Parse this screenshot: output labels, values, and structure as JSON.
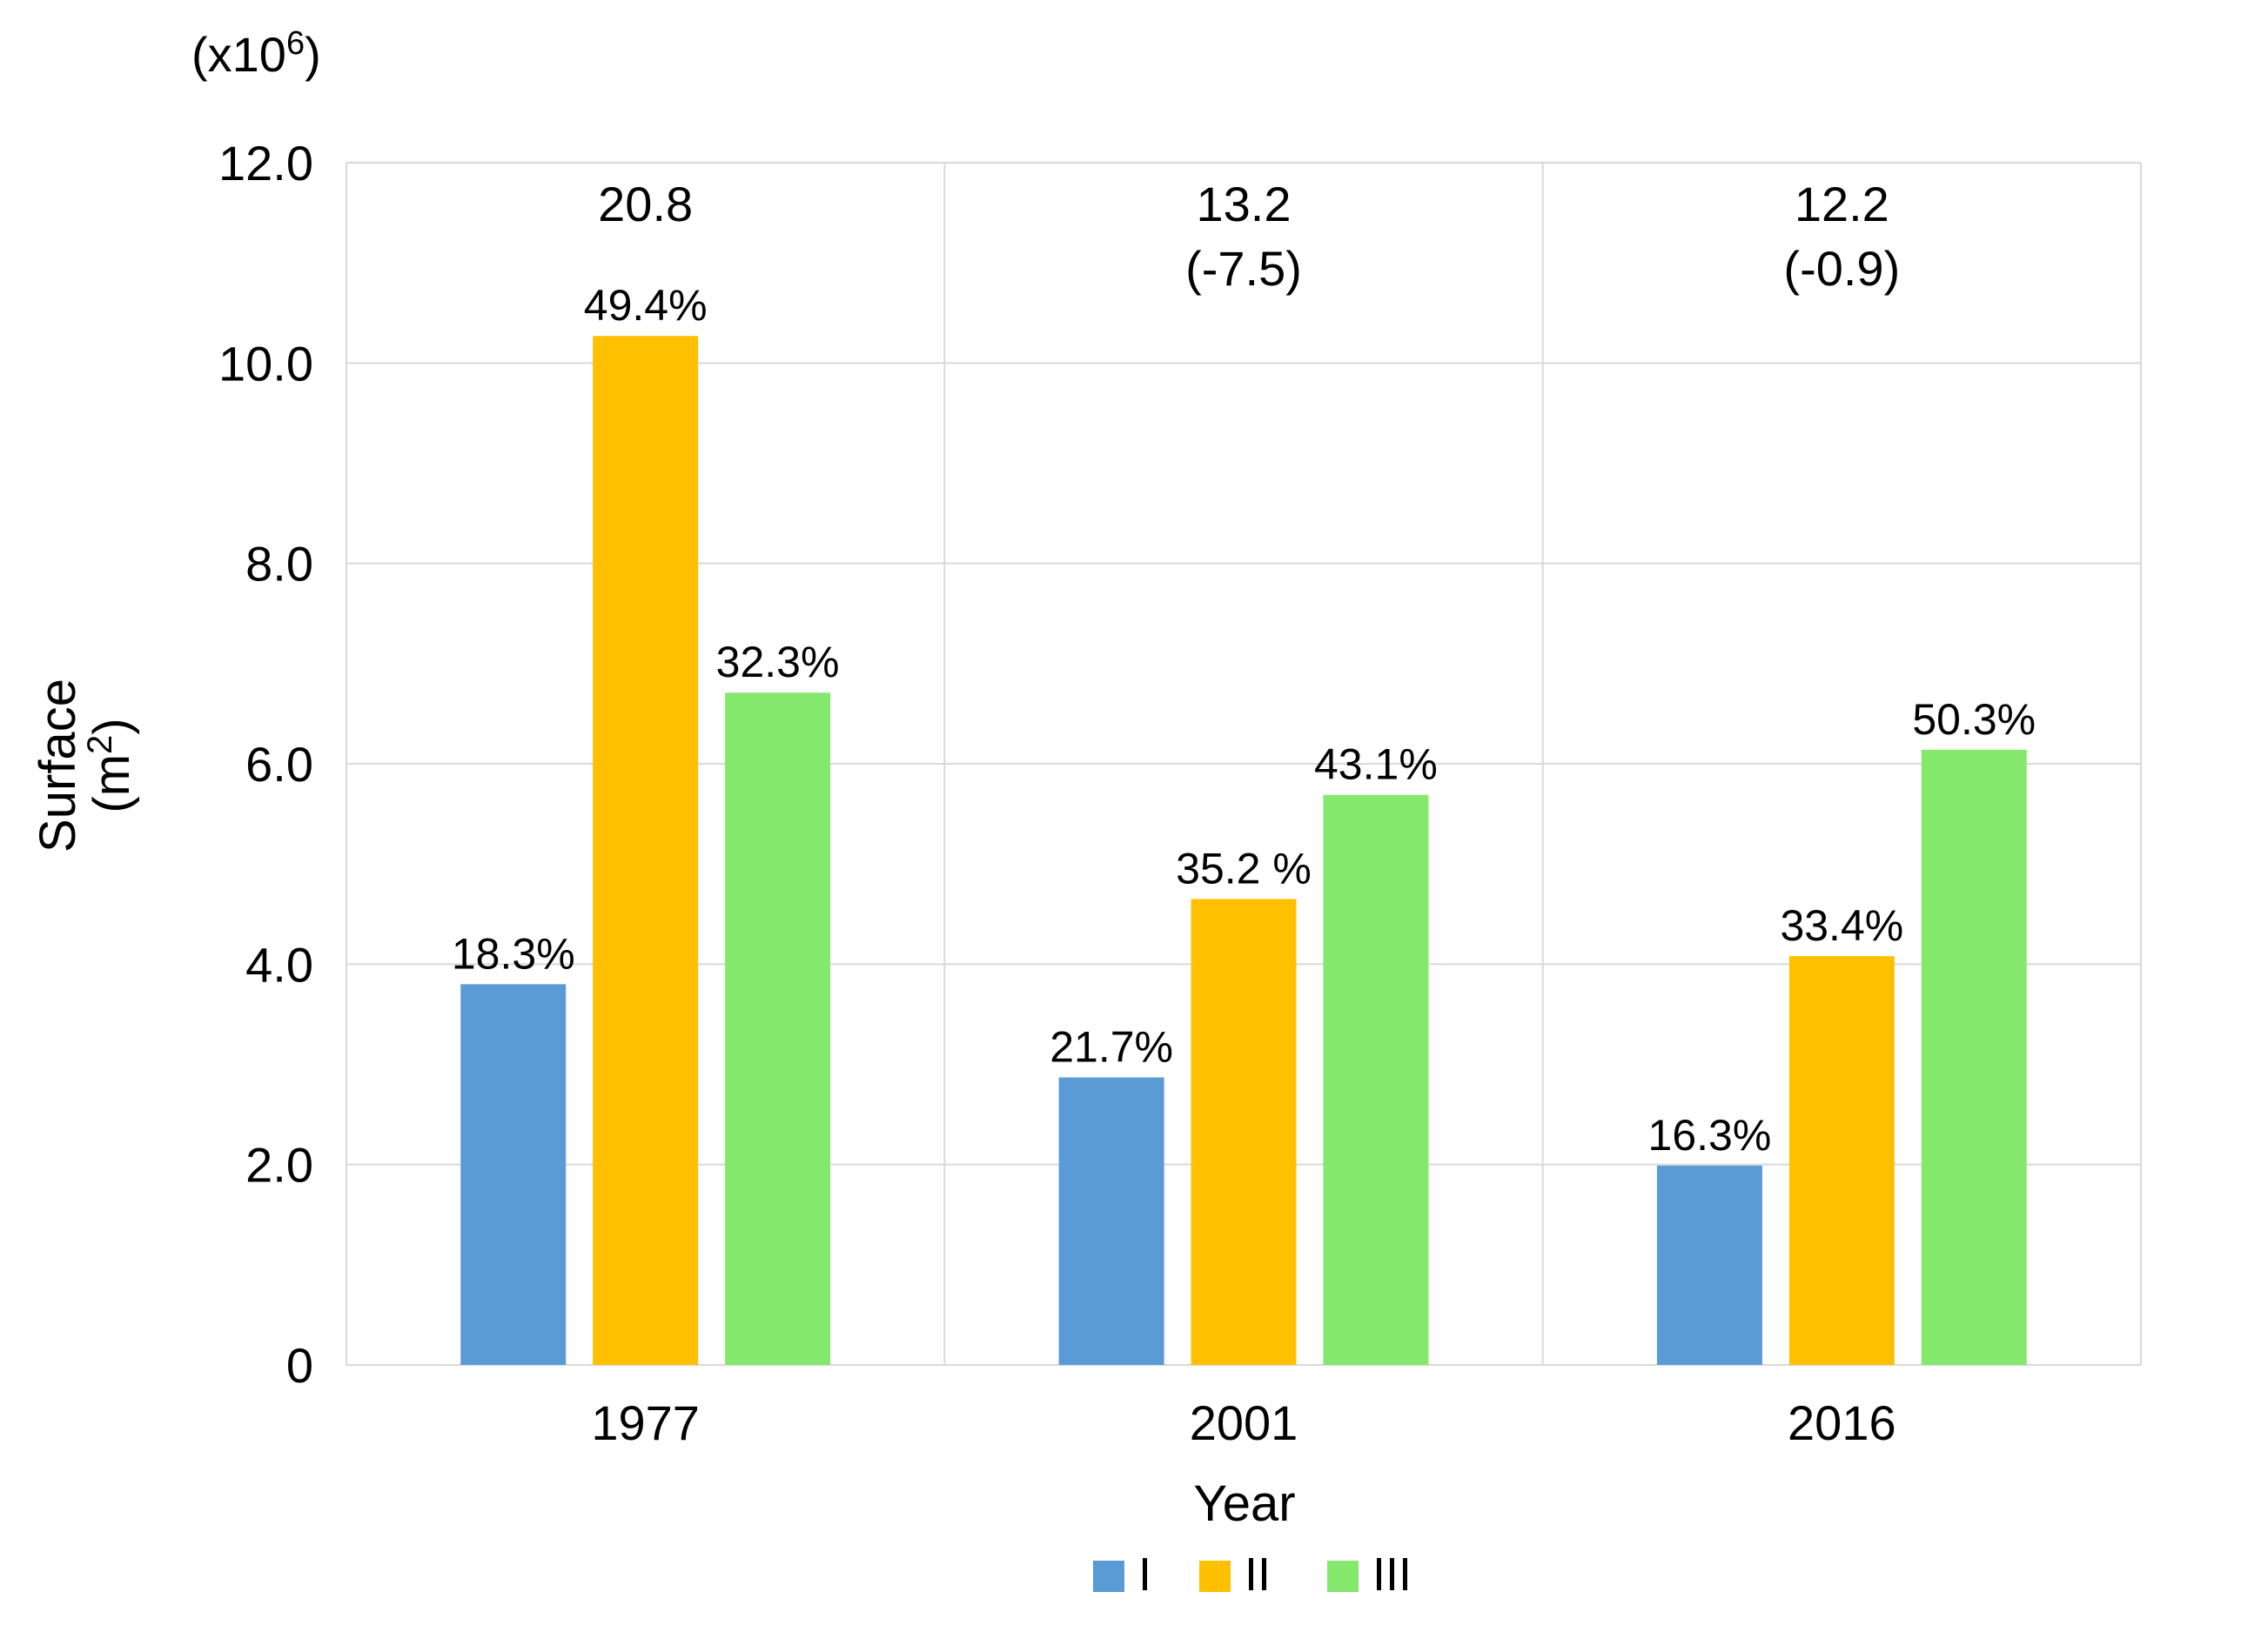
{
  "chart_data": {
    "type": "bar",
    "categories": [
      "1977",
      "2001",
      "2016"
    ],
    "series": [
      {
        "name": "I",
        "color": "#5b9bd5",
        "values": [
          3.8,
          2.87,
          1.99
        ],
        "labels": [
          "18.3%",
          "21.7%",
          "16.3%"
        ]
      },
      {
        "name": "II",
        "color": "#ffc000",
        "values": [
          10.27,
          4.65,
          4.08
        ],
        "labels": [
          "49.4%",
          "35.2 %",
          "33.4%"
        ]
      },
      {
        "name": "III",
        "color": "#84e86c",
        "values": [
          6.71,
          5.69,
          6.14
        ],
        "labels": [
          "32.3%",
          "43.1%",
          "50.3%"
        ]
      }
    ],
    "totals": [
      {
        "value": "20.8",
        "change": ""
      },
      {
        "value": "13.2",
        "change": "(-7.5)"
      },
      {
        "value": "12.2",
        "change": "(-0.9)"
      }
    ],
    "unit_note_prefix": "(x10",
    "unit_note_exp": "6",
    "unit_note_suffix": ")",
    "ylabel_line1": "Surface",
    "ylabel_line2_prefix": "(m",
    "ylabel_line2_exp": "2",
    "ylabel_line2_suffix": ")",
    "xlabel": "Year",
    "yticks": [
      "0",
      "2.0",
      "4.0",
      "6.0",
      "8.0",
      "10.0",
      "12.0"
    ],
    "ylim": [
      0,
      12
    ],
    "legend_position": "bottom",
    "grid": true,
    "colors": {
      "grid": "#d9d9d9",
      "axis": "#d9d9d9",
      "text": "#000000"
    }
  }
}
